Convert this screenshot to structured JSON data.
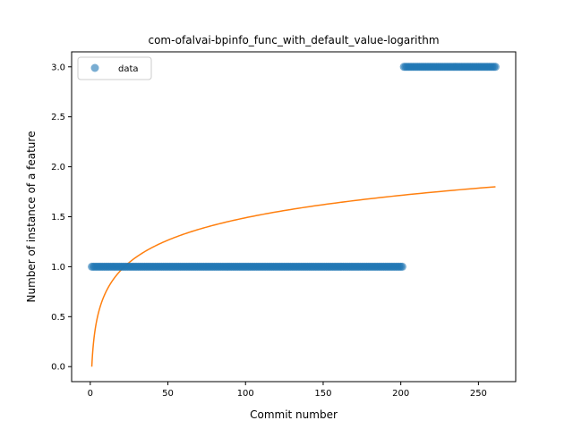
{
  "chart_data": {
    "type": "scatter",
    "title": "com-ofalvai-bpinfo_func_with_default_value-logarithm",
    "xlabel": "Commit number",
    "ylabel": "Number of instance of a feature",
    "xlim": [
      -12,
      274
    ],
    "ylim": [
      -0.15,
      3.15
    ],
    "xticks": [
      0,
      50,
      100,
      150,
      200,
      250
    ],
    "yticks": [
      0.0,
      0.5,
      1.0,
      1.5,
      2.0,
      2.5,
      3.0
    ],
    "xtick_labels": [
      "0",
      "50",
      "100",
      "150",
      "200",
      "250"
    ],
    "ytick_labels": [
      "0.0",
      "0.5",
      "1.0",
      "1.5",
      "2.0",
      "2.5",
      "3.0"
    ],
    "grid": false,
    "legend": {
      "position": "top-left",
      "entries": [
        "data"
      ]
    },
    "series": [
      {
        "name": "data",
        "kind": "scatter",
        "color": "#1f77b4",
        "segments": [
          {
            "x_start": 1,
            "x_end": 201,
            "y": 1
          },
          {
            "x_start": 202,
            "x_end": 261,
            "y": 3
          }
        ]
      },
      {
        "kind": "line",
        "color": "#ff7f0e",
        "fit": "logarithmic",
        "x_range": [
          1,
          261
        ],
        "y_at_start": 0.0,
        "y_at_end": 1.8
      }
    ]
  }
}
